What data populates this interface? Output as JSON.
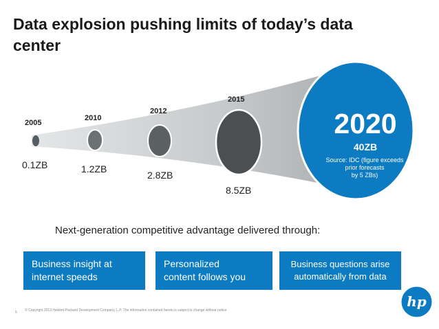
{
  "title": "Data explosion pushing limits of today’s data center",
  "timeline": [
    {
      "year": "2005",
      "value": "0.1ZB"
    },
    {
      "year": "2010",
      "value": "1.2ZB"
    },
    {
      "year": "2012",
      "value": "2.8ZB"
    },
    {
      "year": "2015",
      "value": "8.5ZB"
    }
  ],
  "highlight": {
    "year": "2020",
    "value": "40ZB",
    "source_line1": "Source: IDC (figure exceeds",
    "source_line2": "prior forecasts",
    "source_line3": "by 5 ZBs)"
  },
  "subtitle": "Next-generation competitive advantage delivered through:",
  "boxes": [
    {
      "line1": "Business insight at",
      "line2": "internet speeds"
    },
    {
      "line1": "Personalized",
      "line2": "content follows you"
    },
    {
      "line1": "Business questions arise",
      "line2": "automatically from data"
    }
  ],
  "footer": {
    "page": "6",
    "copyright": "© Copyright 2013 Hewlett-Packard Development Company, L.P. The information contained herein is subject to change without notice."
  },
  "logo_text": "hp",
  "colors": {
    "accent": "#0c7bc1",
    "funnel": "#b5b8b9"
  }
}
